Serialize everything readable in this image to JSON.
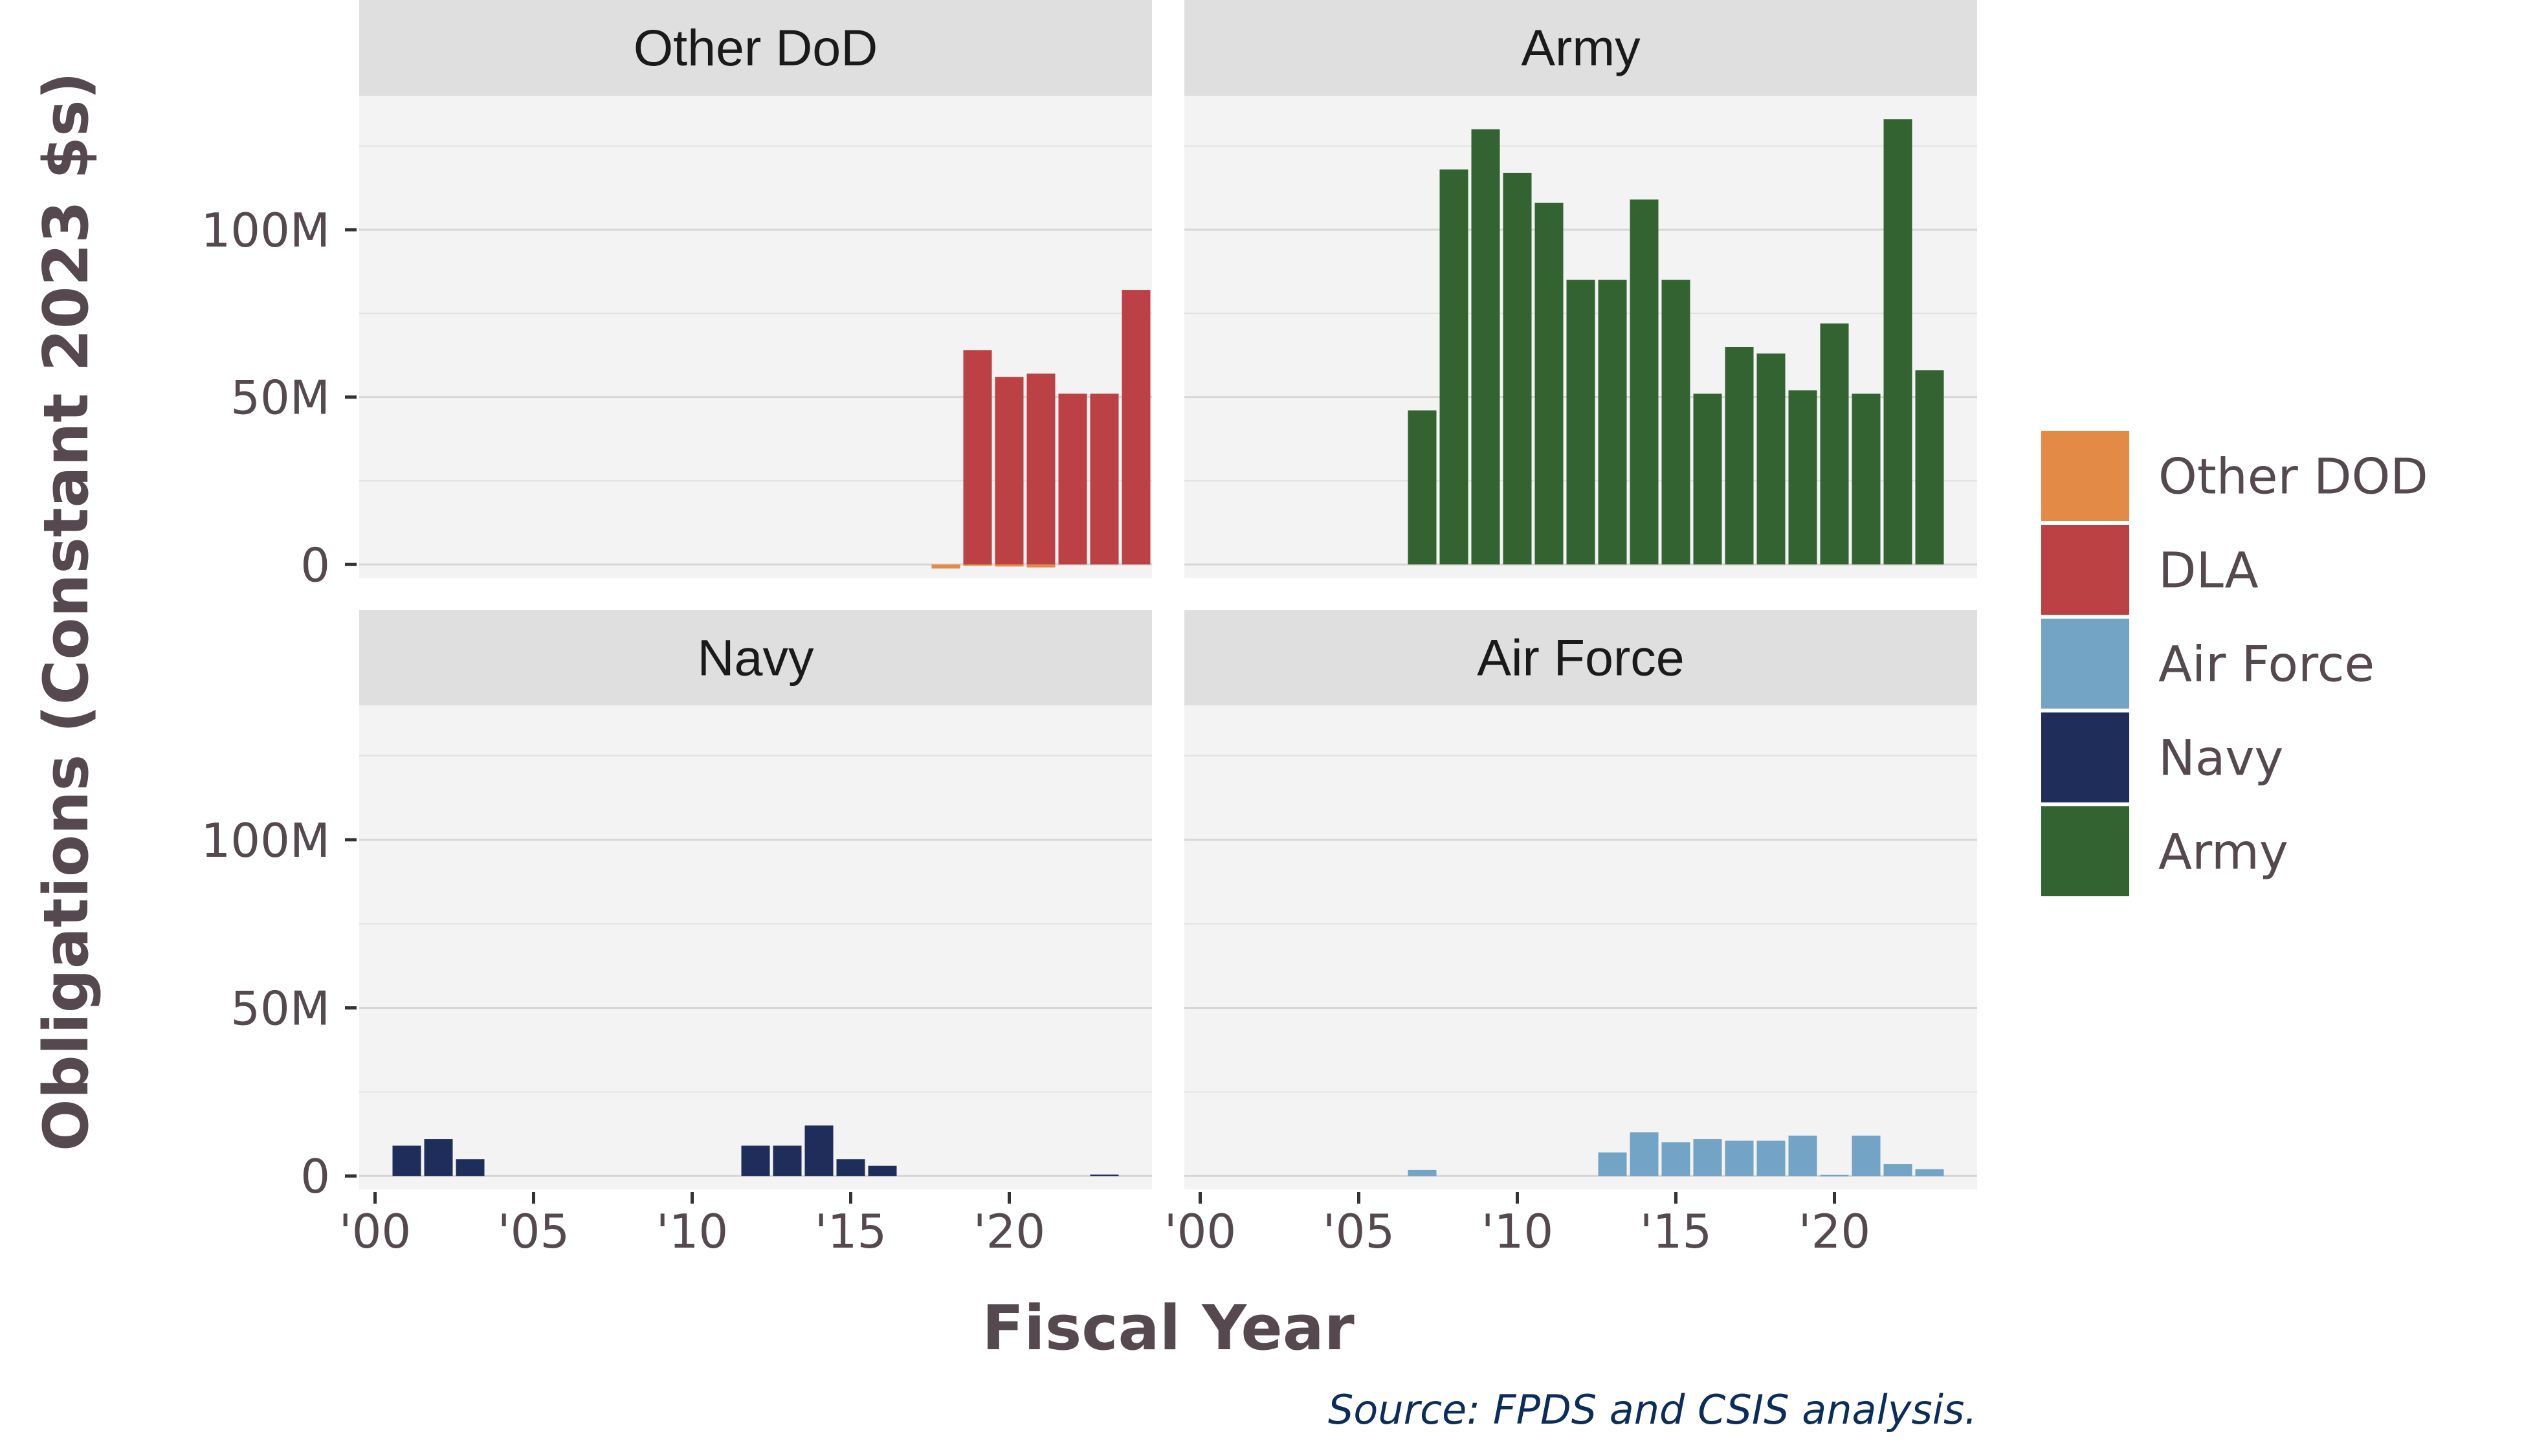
{
  "chart_data": {
    "type": "bar",
    "layout": "facet-grid",
    "ylabel": "Obligations (Constant 2023 $s)",
    "xlabel": "Fiscal Year",
    "caption": "Source: FPDS and CSIS analysis.",
    "x_ticks": [
      2000,
      2005,
      2010,
      2015,
      2020
    ],
    "x_tick_labels": [
      "'00",
      "'05",
      "'10",
      "'15",
      "'20"
    ],
    "y_ticks": [
      0,
      50000000,
      100000000
    ],
    "y_tick_labels": [
      "0",
      "50M",
      "100M"
    ],
    "xlim": [
      1999.5,
      2024.5
    ],
    "ylim": [
      -4000000,
      140000000
    ],
    "legend": {
      "placement": "right",
      "items": [
        {
          "label": "Other DOD",
          "color": "#e38a47"
        },
        {
          "label": "DLA",
          "color": "#bb4144"
        },
        {
          "label": "Air Force",
          "color": "#73a3c5"
        },
        {
          "label": "Navy",
          "color": "#1f2d5b"
        },
        {
          "label": "Army",
          "color": "#336331"
        }
      ]
    },
    "facets": [
      {
        "title": "Other DoD",
        "series": [
          {
            "name": "Other DOD",
            "color": "#e38a47",
            "x": [
              2018,
              2019,
              2020,
              2021
            ],
            "values": [
              -1200000,
              -400000,
              -600000,
              -900000
            ]
          },
          {
            "name": "DLA",
            "color": "#bb4144",
            "x": [
              2019,
              2020,
              2021,
              2022,
              2023,
              2024
            ],
            "values": [
              64000000,
              56000000,
              57000000,
              51000000,
              51000000,
              82000000
            ]
          }
        ]
      },
      {
        "title": "Army",
        "series": [
          {
            "name": "Army",
            "color": "#336331",
            "x": [
              2007,
              2008,
              2009,
              2010,
              2011,
              2012,
              2013,
              2014,
              2015,
              2016,
              2017,
              2018,
              2019,
              2020,
              2021,
              2022,
              2023
            ],
            "values": [
              46000000,
              118000000,
              130000000,
              117000000,
              108000000,
              85000000,
              85000000,
              109000000,
              85000000,
              51000000,
              65000000,
              63000000,
              52000000,
              72000000,
              51000000,
              133000000,
              58000000
            ]
          }
        ]
      },
      {
        "title": "Navy",
        "series": [
          {
            "name": "Navy",
            "color": "#1f2d5b",
            "x": [
              2001,
              2002,
              2003,
              2012,
              2013,
              2014,
              2015,
              2016,
              2023
            ],
            "values": [
              9000000,
              11000000,
              5000000,
              9000000,
              9000000,
              15000000,
              5000000,
              3000000,
              400000
            ]
          }
        ]
      },
      {
        "title": "Air Force",
        "series": [
          {
            "name": "Air Force",
            "color": "#73a3c5",
            "x": [
              2007,
              2013,
              2014,
              2015,
              2016,
              2017,
              2018,
              2019,
              2020,
              2021,
              2022,
              2023
            ],
            "values": [
              1800000,
              7000000,
              13000000,
              10000000,
              11000000,
              10500000,
              10500000,
              12000000,
              300000,
              12000000,
              3500000,
              2000000
            ]
          }
        ]
      }
    ]
  }
}
